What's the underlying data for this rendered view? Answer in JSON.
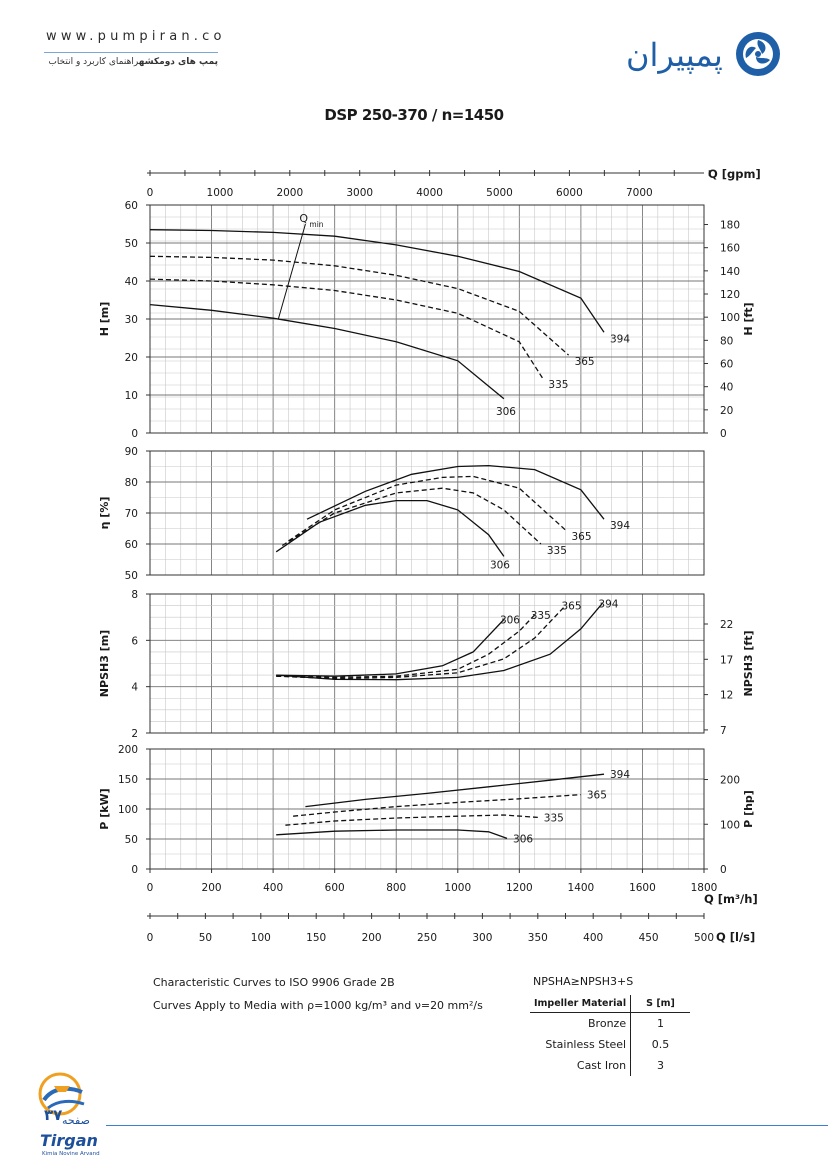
{
  "header": {
    "url": "www.pumpiran.co",
    "subtitle_prefix": "راهنمای کاربرد و انتخاب ",
    "subtitle_bold": "پمپ های دومکشه",
    "brand_name": "پمپیران"
  },
  "title": "DSP 250-370 / n=1450",
  "notes": {
    "line1": "Characteristic Curves to ISO 9906 Grade 2B",
    "line2": "Curves Apply to Media with ρ=1000 kg/m³ and ν=20 mm²/s",
    "npsh_formula": "NPSHA≥NPSH3+S"
  },
  "table": {
    "headers": [
      "Impeller Material",
      "S [m]"
    ],
    "rows": [
      [
        "Bronze",
        "1"
      ],
      [
        "Stainless Steel",
        "0.5"
      ],
      [
        "Cast Iron",
        "3"
      ]
    ]
  },
  "footer": {
    "page_label": "صفحه",
    "page_number": "۳۷",
    "company": "Tirgan",
    "company_sub": "Kimia Novine Arvand"
  },
  "chart_data": {
    "type": "line",
    "x_axis": {
      "label": "Q [m³/h]",
      "range": [
        0,
        1800
      ],
      "ticks": [
        "0",
        "200",
        "400",
        "600",
        "800",
        "1000",
        "1200",
        "1400",
        "1600",
        "1800"
      ]
    },
    "gpm_axis": {
      "label": "Q [gpm]",
      "ticks": [
        "0",
        "1000",
        "2000",
        "3000",
        "4000",
        "5000",
        "6000",
        "7000"
      ]
    },
    "ls_axis": {
      "label": "Q [l/s]",
      "ticks": [
        "0",
        "50",
        "100",
        "150",
        "200",
        "250",
        "300",
        "350",
        "400",
        "450",
        "500"
      ]
    },
    "impellers": [
      "394",
      "365",
      "335",
      "306"
    ],
    "head": {
      "ylabel": "H [m]",
      "ylim": [
        0,
        60
      ],
      "yticks": [
        "0",
        "10",
        "20",
        "30",
        "40",
        "50",
        "60"
      ],
      "ylabel_right": "H [ft]",
      "yticks_right": [
        "0",
        "20",
        "40",
        "60",
        "80",
        "100",
        "120",
        "140",
        "160",
        "180"
      ],
      "qmin_label": "Q",
      "qmin_sub": "min",
      "series": [
        {
          "name": "394",
          "style": "solid",
          "points": [
            [
              0,
              53.5
            ],
            [
              200,
              53.3
            ],
            [
              400,
              52.8
            ],
            [
              600,
              51.8
            ],
            [
              800,
              49.5
            ],
            [
              1000,
              46.5
            ],
            [
              1200,
              42.5
            ],
            [
              1400,
              35.5
            ],
            [
              1475,
              26.5
            ]
          ]
        },
        {
          "name": "365",
          "style": "dashed",
          "points": [
            [
              0,
              46.5
            ],
            [
              200,
              46.2
            ],
            [
              400,
              45.5
            ],
            [
              600,
              44
            ],
            [
              800,
              41.5
            ],
            [
              1000,
              38
            ],
            [
              1200,
              32
            ],
            [
              1360,
              20.5
            ]
          ]
        },
        {
          "name": "335",
          "style": "dashed",
          "points": [
            [
              0,
              40.5
            ],
            [
              200,
              40
            ],
            [
              400,
              39
            ],
            [
              600,
              37.5
            ],
            [
              800,
              35
            ],
            [
              1000,
              31.5
            ],
            [
              1200,
              24
            ],
            [
              1275,
              14.5
            ]
          ]
        },
        {
          "name": "306",
          "style": "solid",
          "points": [
            [
              0,
              33.8
            ],
            [
              200,
              32.3
            ],
            [
              400,
              30.2
            ],
            [
              600,
              27.5
            ],
            [
              800,
              24
            ],
            [
              1000,
              19
            ],
            [
              1150,
              9
            ]
          ]
        }
      ],
      "qmin_curve": [
        [
          417,
          30
        ],
        [
          505,
          55
        ]
      ]
    },
    "efficiency": {
      "ylabel": "η [%]",
      "ylim": [
        50,
        90
      ],
      "yticks": [
        "50",
        "60",
        "70",
        "80",
        "90"
      ],
      "series": [
        {
          "name": "394",
          "style": "solid",
          "points": [
            [
              510,
              68
            ],
            [
              700,
              77
            ],
            [
              850,
              82.5
            ],
            [
              1000,
              85
            ],
            [
              1100,
              85.3
            ],
            [
              1250,
              84
            ],
            [
              1400,
              77.5
            ],
            [
              1475,
              68
            ]
          ]
        },
        {
          "name": "365",
          "style": "dashed",
          "points": [
            [
              450,
              61
            ],
            [
              600,
              71
            ],
            [
              800,
              79
            ],
            [
              950,
              81.5
            ],
            [
              1050,
              81.8
            ],
            [
              1200,
              78
            ],
            [
              1350,
              64.5
            ]
          ]
        },
        {
          "name": "335",
          "style": "dashed",
          "points": [
            [
              430,
              59.5
            ],
            [
              600,
              70
            ],
            [
              800,
              76.5
            ],
            [
              950,
              78
            ],
            [
              1050,
              76.5
            ],
            [
              1150,
              71
            ],
            [
              1270,
              60
            ]
          ]
        },
        {
          "name": "306",
          "style": "solid",
          "points": [
            [
              410,
              57.5
            ],
            [
              550,
              67
            ],
            [
              700,
              72.5
            ],
            [
              800,
              74
            ],
            [
              900,
              74
            ],
            [
              1000,
              71
            ],
            [
              1100,
              63
            ],
            [
              1150,
              56
            ]
          ]
        }
      ]
    },
    "npsh": {
      "ylabel": "NPSH3 [m]",
      "ylim": [
        2,
        8
      ],
      "yticks": [
        "2",
        "4",
        "6",
        "8"
      ],
      "ylabel_right": "NPSH3 [ft]",
      "yticks_right": [
        "7",
        "12",
        "17",
        "22"
      ],
      "series": [
        {
          "name": "394",
          "style": "solid",
          "points": [
            [
              410,
              4.5
            ],
            [
              600,
              4.32
            ],
            [
              800,
              4.3
            ],
            [
              1000,
              4.4
            ],
            [
              1150,
              4.7
            ],
            [
              1300,
              5.4
            ],
            [
              1400,
              6.5
            ],
            [
              1470,
              7.6
            ]
          ]
        },
        {
          "name": "365",
          "style": "dashed",
          "points": [
            [
              410,
              4.45
            ],
            [
              600,
              4.35
            ],
            [
              800,
              4.4
            ],
            [
              1000,
              4.6
            ],
            [
              1150,
              5.2
            ],
            [
              1250,
              6.1
            ],
            [
              1350,
              7.5
            ]
          ]
        },
        {
          "name": "335",
          "style": "dashed",
          "points": [
            [
              410,
              4.45
            ],
            [
              600,
              4.4
            ],
            [
              800,
              4.45
            ],
            [
              1000,
              4.75
            ],
            [
              1100,
              5.4
            ],
            [
              1200,
              6.4
            ],
            [
              1250,
              7.1
            ]
          ]
        },
        {
          "name": "306",
          "style": "solid",
          "points": [
            [
              410,
              4.5
            ],
            [
              600,
              4.45
            ],
            [
              800,
              4.55
            ],
            [
              950,
              4.9
            ],
            [
              1050,
              5.5
            ],
            [
              1150,
              6.9
            ]
          ]
        }
      ]
    },
    "power": {
      "ylabel": "P [kW]",
      "ylim": [
        0,
        200
      ],
      "yticks": [
        "0",
        "50",
        "100",
        "150",
        "200"
      ],
      "ylabel_right": "P [hp]",
      "yticks_right": [
        "0",
        "100",
        "200"
      ],
      "series": [
        {
          "name": "394",
          "style": "solid",
          "points": [
            [
              505,
              104
            ],
            [
              700,
              116
            ],
            [
              900,
              126
            ],
            [
              1100,
              137
            ],
            [
              1300,
              148
            ],
            [
              1475,
              158
            ]
          ]
        },
        {
          "name": "365",
          "style": "dashed",
          "points": [
            [
              465,
              88
            ],
            [
              600,
              95
            ],
            [
              800,
              104
            ],
            [
              1000,
              111
            ],
            [
              1200,
              117
            ],
            [
              1400,
              124
            ]
          ]
        },
        {
          "name": "335",
          "style": "dashed",
          "points": [
            [
              440,
              73
            ],
            [
              600,
              80
            ],
            [
              800,
              85
            ],
            [
              1000,
              88
            ],
            [
              1150,
              90
            ],
            [
              1260,
              86
            ]
          ]
        },
        {
          "name": "306",
          "style": "solid",
          "points": [
            [
              410,
              57
            ],
            [
              600,
              63
            ],
            [
              800,
              65
            ],
            [
              1000,
              65
            ],
            [
              1100,
              62
            ],
            [
              1160,
              51
            ]
          ]
        }
      ]
    }
  }
}
